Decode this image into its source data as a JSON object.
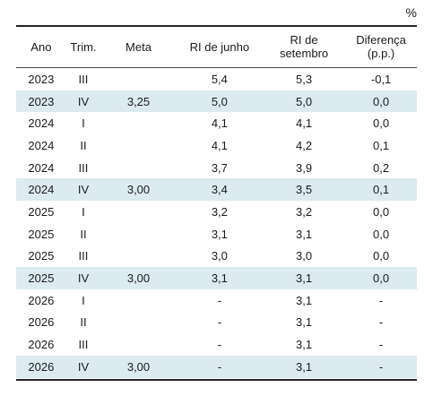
{
  "unit_label": "%",
  "headers": {
    "ano": "Ano",
    "trim": "Trim.",
    "meta": "Meta",
    "ri_junho": "RI de junho",
    "ri_setembro_line1": "RI de",
    "ri_setembro_line2": "setembro",
    "diferenca_line1": "Diferença",
    "diferenca_line2": "(p.p.)"
  },
  "rows": [
    {
      "ano": "2023",
      "trim": "III",
      "meta": "",
      "ri_junho": "5,4",
      "ri_setembro": "5,3",
      "diferenca": "-0,1",
      "highlight": false
    },
    {
      "ano": "2023",
      "trim": "IV",
      "meta": "3,25",
      "ri_junho": "5,0",
      "ri_setembro": "5,0",
      "diferenca": "0,0",
      "highlight": true
    },
    {
      "ano": "2024",
      "trim": "I",
      "meta": "",
      "ri_junho": "4,1",
      "ri_setembro": "4,1",
      "diferenca": "0,0",
      "highlight": false
    },
    {
      "ano": "2024",
      "trim": "II",
      "meta": "",
      "ri_junho": "4,1",
      "ri_setembro": "4,2",
      "diferenca": "0,1",
      "highlight": false
    },
    {
      "ano": "2024",
      "trim": "III",
      "meta": "",
      "ri_junho": "3,7",
      "ri_setembro": "3,9",
      "diferenca": "0,2",
      "highlight": false
    },
    {
      "ano": "2024",
      "trim": "IV",
      "meta": "3,00",
      "ri_junho": "3,4",
      "ri_setembro": "3,5",
      "diferenca": "0,1",
      "highlight": true
    },
    {
      "ano": "2025",
      "trim": "I",
      "meta": "",
      "ri_junho": "3,2",
      "ri_setembro": "3,2",
      "diferenca": "0,0",
      "highlight": false
    },
    {
      "ano": "2025",
      "trim": "II",
      "meta": "",
      "ri_junho": "3,1",
      "ri_setembro": "3,1",
      "diferenca": "0,0",
      "highlight": false
    },
    {
      "ano": "2025",
      "trim": "III",
      "meta": "",
      "ri_junho": "3,0",
      "ri_setembro": "3,0",
      "diferenca": "0,0",
      "highlight": false
    },
    {
      "ano": "2025",
      "trim": "IV",
      "meta": "3,00",
      "ri_junho": "3,1",
      "ri_setembro": "3,1",
      "diferenca": "0,0",
      "highlight": true
    },
    {
      "ano": "2026",
      "trim": "I",
      "meta": "",
      "ri_junho": "-",
      "ri_setembro": "3,1",
      "diferenca": "-",
      "highlight": false
    },
    {
      "ano": "2026",
      "trim": "II",
      "meta": "",
      "ri_junho": "-",
      "ri_setembro": "3,1",
      "diferenca": "-",
      "highlight": false
    },
    {
      "ano": "2026",
      "trim": "III",
      "meta": "",
      "ri_junho": "-",
      "ri_setembro": "3,1",
      "diferenca": "-",
      "highlight": false
    },
    {
      "ano": "2026",
      "trim": "IV",
      "meta": "3,00",
      "ri_junho": "-",
      "ri_setembro": "3,1",
      "diferenca": "-",
      "highlight": true
    }
  ],
  "colors": {
    "highlight_row": "#dcebf0",
    "rule": "#222222"
  }
}
